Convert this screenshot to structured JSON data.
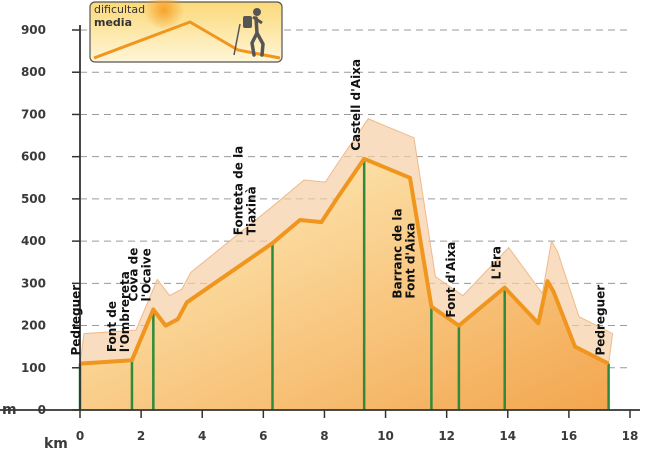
{
  "colors": {
    "profile_line": "#f0961e",
    "fill_top": "#fff3c4",
    "fill_bottom": "#f3a64e",
    "shadow_fill": "#f6cfa5",
    "shadow_stroke": "#efb98a",
    "marker": "#2f8a3b",
    "axis": "#333333",
    "grid": "#9a9a9a"
  },
  "badge": {
    "line1": "dificultad",
    "line2": "media",
    "icon": "hiker-icon"
  },
  "chart_data": {
    "type": "area",
    "title": "",
    "xlabel": "km",
    "ylabel": "m",
    "xlim": [
      0,
      18
    ],
    "ylim": [
      0,
      900
    ],
    "x_ticks": [
      0,
      2,
      4,
      6,
      8,
      10,
      12,
      14,
      16,
      18
    ],
    "y_ticks": [
      0,
      100,
      200,
      300,
      400,
      500,
      600,
      700,
      800,
      900
    ],
    "x_tick_labels": [
      "0",
      "2",
      "4",
      "6",
      "8",
      "10",
      "12",
      "14",
      "16",
      "18"
    ],
    "y_tick_labels": [
      "0",
      "100",
      "200",
      "300",
      "400",
      "500",
      "600",
      "700",
      "800",
      "900"
    ],
    "grid": "horizontal dashed",
    "profile": {
      "x": [
        0,
        1.7,
        2.4,
        2.8,
        3.2,
        3.5,
        6.3,
        7.2,
        7.9,
        8.4,
        9.3,
        10.8,
        11.5,
        12.4,
        13.9,
        15.0,
        15.3,
        15.5,
        16.2,
        17.3
      ],
      "y": [
        110,
        118,
        238,
        200,
        215,
        255,
        395,
        450,
        445,
        500,
        595,
        550,
        245,
        200,
        290,
        205,
        305,
        280,
        150,
        110
      ]
    },
    "waypoints": [
      {
        "km": 0.0,
        "label": "Pedreguer"
      },
      {
        "km": 1.7,
        "label": "Font de l'Ombrereta"
      },
      {
        "km": 2.4,
        "label": "Cova de l'Ocaive"
      },
      {
        "km": 6.3,
        "label": "Fonteta de la Tiaxinà"
      },
      {
        "km": 9.3,
        "label": "Castell d'Aixa"
      },
      {
        "km": 11.5,
        "label": "Barranc de la Font d'Aixa"
      },
      {
        "km": 12.4,
        "label": "Font d'Aixa"
      },
      {
        "km": 13.9,
        "label": "L'Era"
      },
      {
        "km": 17.3,
        "label": "Pedreguer"
      }
    ]
  }
}
